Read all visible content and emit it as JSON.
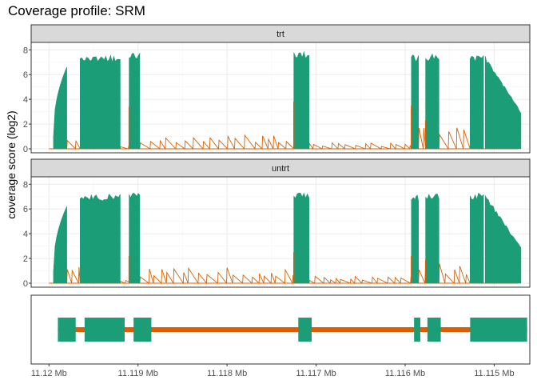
{
  "chart_data": {
    "type": "area",
    "title": "Coverage profile: SRM",
    "ylabel": "coverage score (log2)",
    "xlabel": "",
    "x_reversed": true,
    "x_unit": "Mb",
    "xlim": [
      11.1202,
      11.1146
    ],
    "ylim": [
      0,
      8.6
    ],
    "y_ticks": [
      0,
      2,
      4,
      6,
      8
    ],
    "x_ticks": [
      {
        "value": 11.12,
        "label": "11.12 Mb"
      },
      {
        "value": 11.119,
        "label": "11.119 Mb"
      },
      {
        "value": 11.118,
        "label": "11.118 Mb"
      },
      {
        "value": 11.117,
        "label": "11.117 Mb"
      },
      {
        "value": 11.116,
        "label": "11.116 Mb"
      },
      {
        "value": 11.115,
        "label": "11.115 Mb"
      }
    ],
    "grid": true,
    "colors": {
      "exon": "#1b9e77",
      "intron": "#d95f02",
      "strip": "#d9d9d9",
      "grid": "#ebebeb"
    },
    "exons": [
      {
        "start": 11.1199,
        "end": 11.1197
      },
      {
        "start": 11.1196,
        "end": 11.11915
      },
      {
        "start": 11.11905,
        "end": 11.11885
      },
      {
        "start": 11.1172,
        "end": 11.11705
      },
      {
        "start": 11.1159,
        "end": 11.11583
      },
      {
        "start": 11.11575,
        "end": 11.1156
      },
      {
        "start": 11.11527,
        "end": 11.11463
      }
    ],
    "panels": [
      {
        "label": "trt",
        "exon_coverage": [
          {
            "start": 11.11995,
            "end": 11.1198,
            "peak": 6.6
          },
          {
            "start": 11.11965,
            "end": 11.1192,
            "peak": 7.6
          },
          {
            "start": 11.1191,
            "end": 11.11898,
            "peak": 7.8
          },
          {
            "start": 11.11725,
            "end": 11.11708,
            "peak": 7.9
          },
          {
            "start": 11.11593,
            "end": 11.11585,
            "peak": 7.6
          },
          {
            "start": 11.11577,
            "end": 11.11562,
            "peak": 7.7
          },
          {
            "start": 11.11527,
            "end": 11.11512,
            "peak": 7.6
          },
          {
            "start": 11.1151,
            "end": 11.1147,
            "peak": 7.5
          }
        ],
        "intron_coverage": [
          {
            "start": 11.1198,
            "end": 11.11965,
            "peak": 0.8
          },
          {
            "start": 11.1192,
            "end": 11.11905,
            "peak": 0.3
          },
          {
            "start": 11.11898,
            "end": 11.11725,
            "peak": 1.2
          },
          {
            "start": 11.11708,
            "end": 11.11593,
            "peak": 0.5
          },
          {
            "start": 11.11585,
            "end": 11.11577,
            "peak": 2.0
          },
          {
            "start": 11.11562,
            "end": 11.11527,
            "peak": 1.8
          }
        ],
        "spikes": [
          {
            "x": 11.1191,
            "y": 3.4
          },
          {
            "x": 11.11725,
            "y": 3.8
          },
          {
            "x": 11.11593,
            "y": 3.5
          },
          {
            "x": 11.11577,
            "y": 2.3
          }
        ]
      },
      {
        "label": "untrt",
        "exon_coverage": [
          {
            "start": 11.11995,
            "end": 11.1198,
            "peak": 6.2
          },
          {
            "start": 11.11965,
            "end": 11.1192,
            "peak": 7.2
          },
          {
            "start": 11.1191,
            "end": 11.11898,
            "peak": 7.3
          },
          {
            "start": 11.11725,
            "end": 11.11708,
            "peak": 7.3
          },
          {
            "start": 11.11593,
            "end": 11.11585,
            "peak": 7.2
          },
          {
            "start": 11.11577,
            "end": 11.11562,
            "peak": 7.3
          },
          {
            "start": 11.11527,
            "end": 11.11512,
            "peak": 7.3
          },
          {
            "start": 11.1151,
            "end": 11.1147,
            "peak": 7.2
          }
        ],
        "intron_coverage": [
          {
            "start": 11.1198,
            "end": 11.11965,
            "peak": 1.4
          },
          {
            "start": 11.1192,
            "end": 11.11905,
            "peak": 0.4
          },
          {
            "start": 11.11898,
            "end": 11.11725,
            "peak": 1.3
          },
          {
            "start": 11.11708,
            "end": 11.11593,
            "peak": 0.6
          },
          {
            "start": 11.11585,
            "end": 11.11577,
            "peak": 2.3
          },
          {
            "start": 11.11562,
            "end": 11.11527,
            "peak": 1.6
          }
        ],
        "spikes": [
          {
            "x": 11.1191,
            "y": 2.2
          },
          {
            "x": 11.11725,
            "y": 2.5
          },
          {
            "x": 11.11593,
            "y": 2.2
          },
          {
            "x": 11.11577,
            "y": 1.9
          }
        ]
      }
    ]
  }
}
